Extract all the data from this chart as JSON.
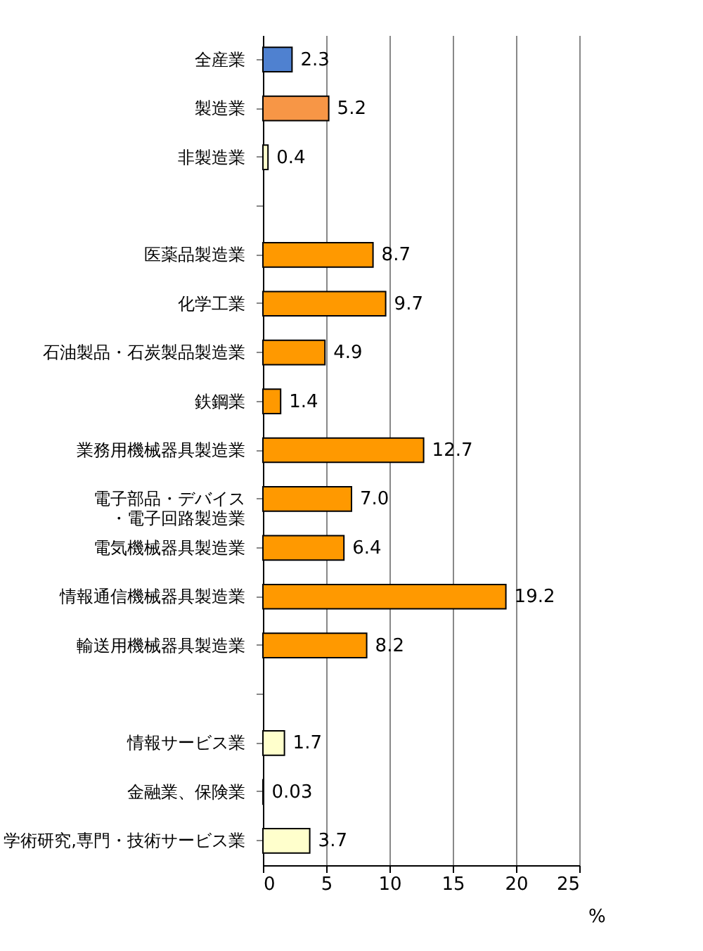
{
  "chart_data": {
    "type": "bar",
    "orientation": "horizontal",
    "categories": [
      "全産業",
      "製造業",
      "非製造業",
      null,
      "医薬品製造業",
      "化学工業",
      "石油製品・石炭製品製造業",
      "鉄鋼業",
      "業務用機械器具製造業",
      "電子部品・デバイス・電子回路製造業",
      "電気機械器具製造業",
      "情報通信機械器具製造業",
      "輸送用機械器具製造業",
      null,
      "情報サービス業",
      "金融業、保険業",
      "学術研究,専門・技術サービス業"
    ],
    "values": [
      2.3,
      5.2,
      0.4,
      null,
      8.7,
      9.7,
      4.9,
      1.4,
      12.7,
      7.0,
      6.4,
      19.2,
      8.2,
      null,
      1.7,
      0.03,
      3.7
    ],
    "value_labels": [
      "2.3",
      "5.2",
      "0.4",
      null,
      "8.7",
      "9.7",
      "4.9",
      "1.4",
      "12.7",
      "7.0",
      "6.4",
      "19.2",
      "8.2",
      null,
      "1.7",
      "0.03",
      "3.7"
    ],
    "colors": [
      "#4f81d0",
      "#f79646",
      "#ffffcc",
      null,
      "#ff9900",
      "#ff9900",
      "#ff9900",
      "#ff9900",
      "#ff9900",
      "#ff9900",
      "#ff9900",
      "#ff9900",
      "#ff9900",
      null,
      "#ffffcc",
      "#ffffcc",
      "#ffffcc"
    ],
    "xlabel": "%",
    "xlim": [
      0,
      25
    ],
    "xticks": [
      0,
      5,
      10,
      15,
      20,
      25
    ],
    "grid": "x"
  }
}
